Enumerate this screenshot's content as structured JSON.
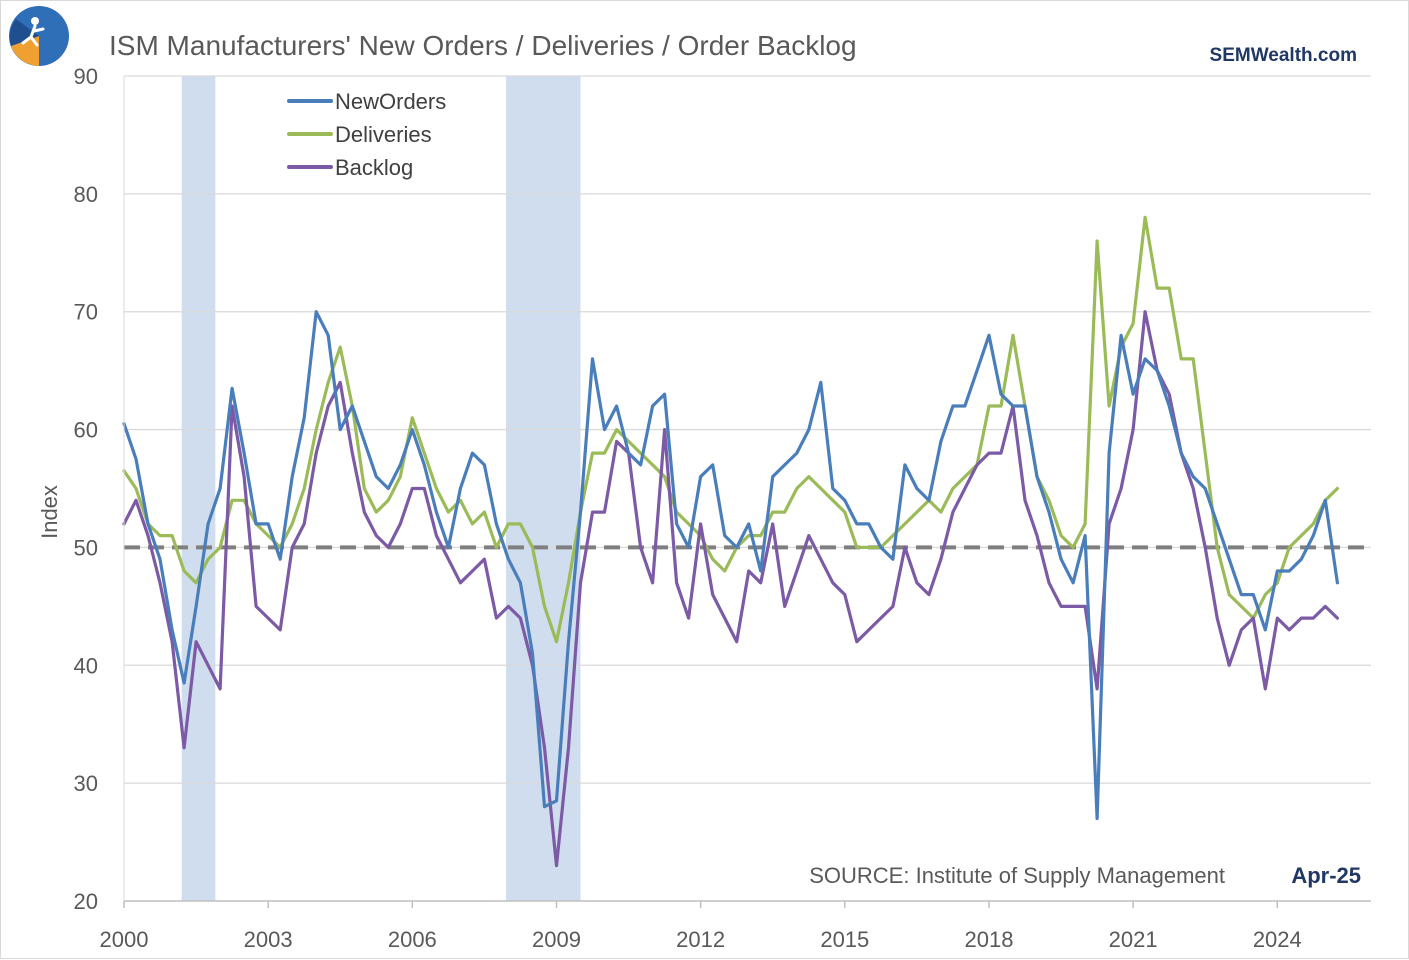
{
  "header": {
    "title": "ISM Manufacturers' New Orders / Deliveries / Order Backlog",
    "brand": "SEMWealth.com"
  },
  "footer": {
    "source": "SOURCE:  Institute of Supply Management",
    "date": "Apr-25"
  },
  "colors": {
    "new_orders": "#4a7ebb",
    "deliveries": "#9bbb59",
    "backlog": "#7c5aa6",
    "recession": "#d0ddef",
    "reference": "#7f7f7f",
    "grid": "#d9d9d9"
  },
  "chart_data": {
    "type": "line",
    "title": "ISM Manufacturers' New Orders / Deliveries / Order Backlog",
    "xlabel": "",
    "ylabel": "Index",
    "xlim": [
      2000,
      2025.95
    ],
    "ylim": [
      20,
      90
    ],
    "x_ticks": [
      2000,
      2003,
      2006,
      2009,
      2012,
      2015,
      2018,
      2021,
      2024
    ],
    "x_tick_labels": [
      "2000",
      "2003",
      "2006",
      "2009",
      "2012",
      "2015",
      "2018",
      "2021",
      "2024"
    ],
    "y_ticks": [
      20,
      30,
      40,
      50,
      60,
      70,
      80,
      90
    ],
    "y_tick_labels": [
      "20",
      "30",
      "40",
      "50",
      "60",
      "70",
      "80",
      "90"
    ],
    "grid": "horizontal",
    "legend": "top-left",
    "reference_line": {
      "y": 50,
      "style": "dashed"
    },
    "recession_shading": [
      {
        "start": 2001.2,
        "end": 2001.9
      },
      {
        "start": 2007.95,
        "end": 2009.5
      }
    ],
    "series": [
      {
        "name": "NewOrders",
        "x": [
          2000.0,
          2000.25,
          2000.5,
          2000.75,
          2001.0,
          2001.25,
          2001.5,
          2001.75,
          2002.0,
          2002.25,
          2002.5,
          2002.75,
          2003.0,
          2003.25,
          2003.5,
          2003.75,
          2004.0,
          2004.25,
          2004.5,
          2004.75,
          2005.0,
          2005.25,
          2005.5,
          2005.75,
          2006.0,
          2006.25,
          2006.5,
          2006.75,
          2007.0,
          2007.25,
          2007.5,
          2007.75,
          2008.0,
          2008.25,
          2008.5,
          2008.75,
          2009.0,
          2009.25,
          2009.5,
          2009.75,
          2010.0,
          2010.25,
          2010.5,
          2010.75,
          2011.0,
          2011.25,
          2011.5,
          2011.75,
          2012.0,
          2012.25,
          2012.5,
          2012.75,
          2013.0,
          2013.25,
          2013.5,
          2013.75,
          2014.0,
          2014.25,
          2014.5,
          2014.75,
          2015.0,
          2015.25,
          2015.5,
          2015.75,
          2016.0,
          2016.25,
          2016.5,
          2016.75,
          2017.0,
          2017.25,
          2017.5,
          2017.75,
          2018.0,
          2018.25,
          2018.5,
          2018.75,
          2019.0,
          2019.25,
          2019.5,
          2019.75,
          2020.0,
          2020.25,
          2020.5,
          2020.75,
          2021.0,
          2021.25,
          2021.5,
          2021.75,
          2022.0,
          2022.25,
          2022.5,
          2022.75,
          2023.0,
          2023.25,
          2023.5,
          2023.75,
          2024.0,
          2024.25,
          2024.5,
          2024.75,
          2025.0,
          2025.25
        ],
        "values": [
          60.5,
          57.5,
          52,
          49,
          43,
          38.5,
          45,
          52,
          55,
          63.5,
          58,
          52,
          52,
          49,
          56,
          61,
          70,
          68,
          60,
          62,
          59,
          56,
          55,
          57,
          60,
          57,
          53,
          50,
          55,
          58,
          57,
          52,
          49,
          47,
          41,
          28,
          28.5,
          42,
          53,
          66,
          60,
          62,
          58,
          57,
          62,
          63,
          52,
          50,
          56,
          57,
          51,
          50,
          52,
          48,
          56,
          57,
          58,
          60,
          64,
          55,
          54,
          52,
          52,
          50,
          49,
          57,
          55,
          54,
          59,
          62,
          62,
          65,
          68,
          63,
          62,
          62,
          56,
          53,
          49,
          47,
          51,
          27,
          58,
          68,
          63,
          66,
          65,
          62,
          58,
          56,
          55,
          52,
          49,
          46,
          46,
          43,
          48,
          48,
          49,
          51,
          54,
          47
        ]
      },
      {
        "name": "Deliveries",
        "x": [
          2000.0,
          2000.25,
          2000.5,
          2000.75,
          2001.0,
          2001.25,
          2001.5,
          2001.75,
          2002.0,
          2002.25,
          2002.5,
          2002.75,
          2003.0,
          2003.25,
          2003.5,
          2003.75,
          2004.0,
          2004.25,
          2004.5,
          2004.75,
          2005.0,
          2005.25,
          2005.5,
          2005.75,
          2006.0,
          2006.25,
          2006.5,
          2006.75,
          2007.0,
          2007.25,
          2007.5,
          2007.75,
          2008.0,
          2008.25,
          2008.5,
          2008.75,
          2009.0,
          2009.25,
          2009.5,
          2009.75,
          2010.0,
          2010.25,
          2010.5,
          2010.75,
          2011.0,
          2011.25,
          2011.5,
          2011.75,
          2012.0,
          2012.25,
          2012.5,
          2012.75,
          2013.0,
          2013.25,
          2013.5,
          2013.75,
          2014.0,
          2014.25,
          2014.5,
          2014.75,
          2015.0,
          2015.25,
          2015.5,
          2015.75,
          2016.0,
          2016.25,
          2016.5,
          2016.75,
          2017.0,
          2017.25,
          2017.5,
          2017.75,
          2018.0,
          2018.25,
          2018.5,
          2018.75,
          2019.0,
          2019.25,
          2019.5,
          2019.75,
          2020.0,
          2020.25,
          2020.5,
          2020.75,
          2021.0,
          2021.25,
          2021.5,
          2021.75,
          2022.0,
          2022.25,
          2022.5,
          2022.75,
          2023.0,
          2023.25,
          2023.5,
          2023.75,
          2024.0,
          2024.25,
          2024.5,
          2024.75,
          2025.0,
          2025.25
        ],
        "values": [
          56.5,
          55,
          52,
          51,
          51,
          48,
          47,
          49,
          50,
          54,
          54,
          52,
          51,
          50,
          52,
          55,
          60,
          64,
          67,
          62,
          55,
          53,
          54,
          56,
          61,
          58,
          55,
          53,
          54,
          52,
          53,
          50,
          52,
          52,
          50,
          45,
          42,
          47,
          53,
          58,
          58,
          60,
          59,
          58,
          57,
          56,
          53,
          52,
          51,
          49,
          48,
          50,
          51,
          51,
          53,
          53,
          55,
          56,
          55,
          54,
          53,
          50,
          50,
          50,
          51,
          52,
          53,
          54,
          53,
          55,
          56,
          57,
          62,
          62,
          68,
          62,
          56,
          54,
          51,
          50,
          52,
          76,
          62,
          67,
          69,
          78,
          72,
          72,
          66,
          66,
          58,
          50,
          46,
          45,
          44,
          46,
          47,
          50,
          51,
          52,
          54,
          55
        ]
      },
      {
        "name": "Backlog",
        "x": [
          2000.0,
          2000.25,
          2000.5,
          2000.75,
          2001.0,
          2001.25,
          2001.5,
          2001.75,
          2002.0,
          2002.25,
          2002.5,
          2002.75,
          2003.0,
          2003.25,
          2003.5,
          2003.75,
          2004.0,
          2004.25,
          2004.5,
          2004.75,
          2005.0,
          2005.25,
          2005.5,
          2005.75,
          2006.0,
          2006.25,
          2006.5,
          2006.75,
          2007.0,
          2007.25,
          2007.5,
          2007.75,
          2008.0,
          2008.25,
          2008.5,
          2008.75,
          2009.0,
          2009.25,
          2009.5,
          2009.75,
          2010.0,
          2010.25,
          2010.5,
          2010.75,
          2011.0,
          2011.25,
          2011.5,
          2011.75,
          2012.0,
          2012.25,
          2012.5,
          2012.75,
          2013.0,
          2013.25,
          2013.5,
          2013.75,
          2014.0,
          2014.25,
          2014.5,
          2014.75,
          2015.0,
          2015.25,
          2015.5,
          2015.75,
          2016.0,
          2016.25,
          2016.5,
          2016.75,
          2017.0,
          2017.25,
          2017.5,
          2017.75,
          2018.0,
          2018.25,
          2018.5,
          2018.75,
          2019.0,
          2019.25,
          2019.5,
          2019.75,
          2020.0,
          2020.25,
          2020.5,
          2020.75,
          2021.0,
          2021.25,
          2021.5,
          2021.75,
          2022.0,
          2022.25,
          2022.5,
          2022.75,
          2023.0,
          2023.25,
          2023.5,
          2023.75,
          2024.0,
          2024.25,
          2024.5,
          2024.75,
          2025.0,
          2025.25
        ],
        "values": [
          52,
          54,
          51,
          47,
          42,
          33,
          42,
          40,
          38,
          62,
          56,
          45,
          44,
          43,
          50,
          52,
          58,
          62,
          64,
          58,
          53,
          51,
          50,
          52,
          55,
          55,
          51,
          49,
          47,
          48,
          49,
          44,
          45,
          44,
          40,
          33,
          23,
          33,
          47,
          53,
          53,
          59,
          58,
          50,
          47,
          60,
          47,
          44,
          52,
          46,
          44,
          42,
          48,
          47,
          52,
          45,
          48,
          51,
          49,
          47,
          46,
          42,
          43,
          44,
          45,
          50,
          47,
          46,
          49,
          53,
          55,
          57,
          58,
          58,
          62,
          54,
          51,
          47,
          45,
          45,
          45,
          38,
          52,
          55,
          60,
          70,
          65,
          63,
          58,
          55,
          50,
          44,
          40,
          43,
          44,
          38,
          44,
          43,
          44,
          44,
          45,
          44
        ]
      }
    ]
  }
}
